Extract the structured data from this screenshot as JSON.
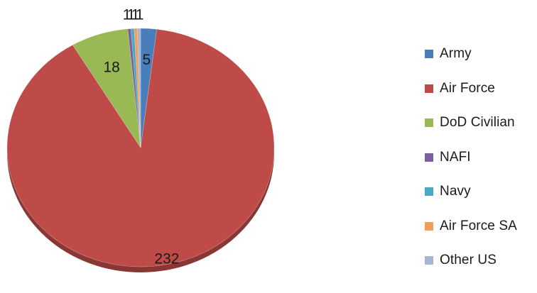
{
  "chart_data": {
    "type": "pie",
    "categories": [
      "Army",
      "Air Force",
      "DoD Civilian",
      "NAFI",
      "Navy",
      "Air Force SA",
      "Other US"
    ],
    "values": [
      5,
      232,
      18,
      1,
      1,
      1,
      1
    ],
    "data_labels": [
      "5",
      "232",
      "18",
      "1",
      "1",
      "1",
      "1"
    ],
    "colors": [
      "#4A7EBB",
      "#BE4B48",
      "#98B954",
      "#7D60A0",
      "#46AAC5",
      "#F59D56",
      "#A5B6D4"
    ],
    "title": "",
    "legend_position": "right",
    "start_angle": "12 o'clock",
    "direction": "clockwise",
    "style": "3D tilted pie"
  }
}
